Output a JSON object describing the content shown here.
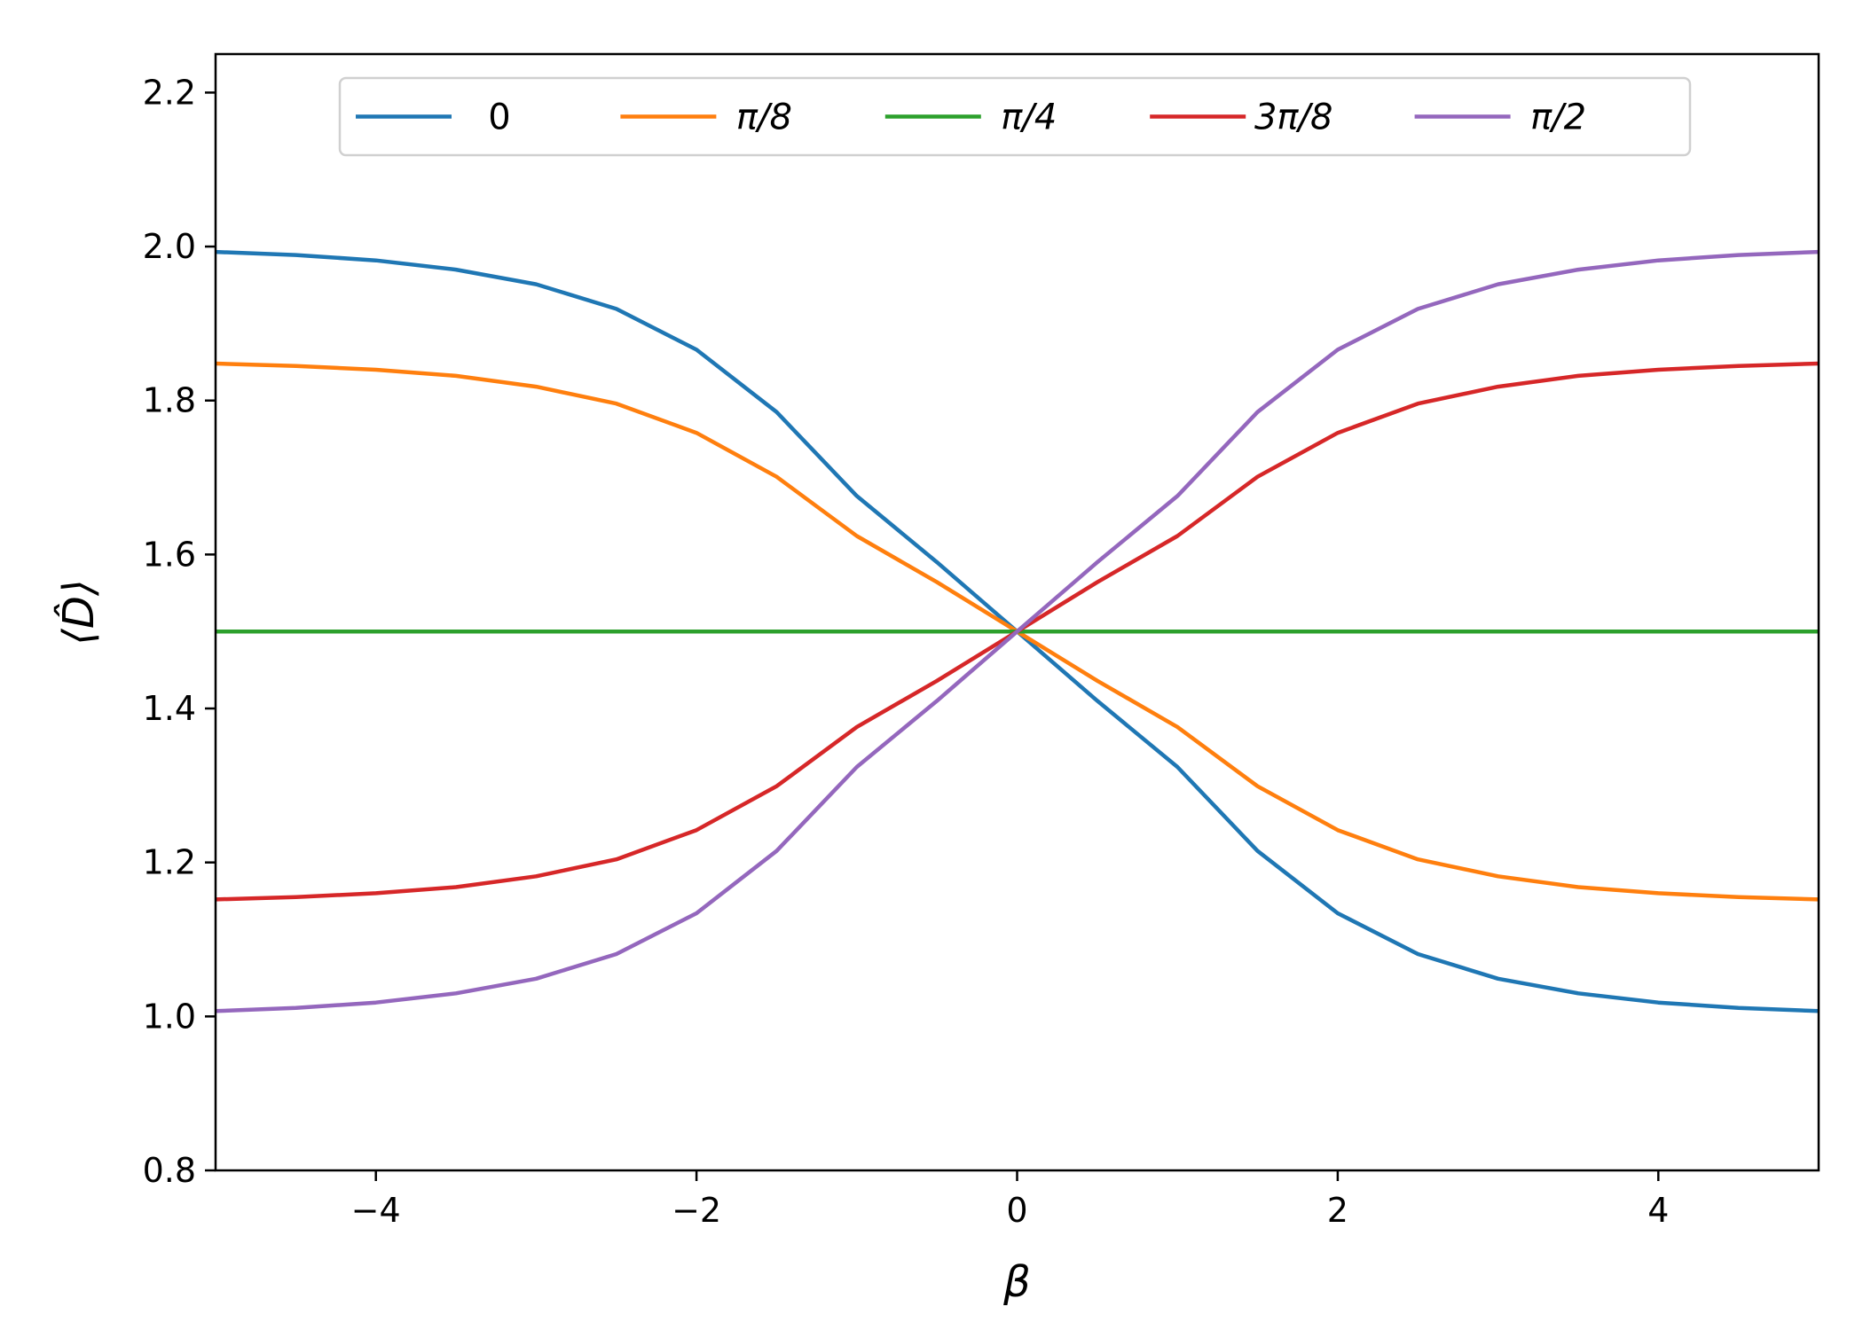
{
  "chart_data": {
    "type": "line",
    "title": "",
    "xlabel": "β",
    "ylabel": "⟨D̂⟩",
    "xlim": [
      -5,
      5
    ],
    "ylim": [
      0.8,
      2.25
    ],
    "x_ticks": [
      -4,
      -2,
      0,
      2,
      4
    ],
    "x_tick_labels": [
      "−4",
      "−2",
      "0",
      "2",
      "4"
    ],
    "y_ticks": [
      0.8,
      1.0,
      1.2,
      1.4,
      1.6,
      1.8,
      2.0,
      2.2
    ],
    "y_tick_labels": [
      "0.8",
      "1.0",
      "1.2",
      "1.4",
      "1.6",
      "1.8",
      "2.0",
      "2.2"
    ],
    "grid": false,
    "legend_position": "top-center",
    "x": [
      -5.0,
      -4.5,
      -4.0,
      -3.5,
      -3.0,
      -2.5,
      -2.0,
      -1.5,
      -1.0,
      -0.5,
      0.0,
      0.5,
      1.0,
      1.5,
      2.0,
      2.5,
      3.0,
      3.5,
      4.0,
      4.5,
      5.0
    ],
    "series": [
      {
        "name": "0",
        "color": "#1f77b4",
        "values": [
          1.993,
          1.989,
          1.982,
          1.97,
          1.951,
          1.919,
          1.866,
          1.785,
          1.676,
          1.59,
          1.5,
          1.41,
          1.324,
          1.215,
          1.134,
          1.081,
          1.049,
          1.03,
          1.018,
          1.011,
          1.007
        ]
      },
      {
        "name": "π/8",
        "color": "#ff7f0e",
        "values": [
          1.848,
          1.845,
          1.84,
          1.832,
          1.818,
          1.796,
          1.758,
          1.701,
          1.624,
          1.564,
          1.5,
          1.436,
          1.376,
          1.299,
          1.242,
          1.204,
          1.182,
          1.168,
          1.16,
          1.155,
          1.152
        ]
      },
      {
        "name": "π/4",
        "color": "#2ca02c",
        "values": [
          1.5,
          1.5,
          1.5,
          1.5,
          1.5,
          1.5,
          1.5,
          1.5,
          1.5,
          1.5,
          1.5,
          1.5,
          1.5,
          1.5,
          1.5,
          1.5,
          1.5,
          1.5,
          1.5,
          1.5,
          1.5
        ]
      },
      {
        "name": "3π/8",
        "color": "#d62728",
        "values": [
          1.152,
          1.155,
          1.16,
          1.168,
          1.182,
          1.204,
          1.242,
          1.299,
          1.376,
          1.436,
          1.5,
          1.564,
          1.624,
          1.701,
          1.758,
          1.796,
          1.818,
          1.832,
          1.84,
          1.845,
          1.848
        ]
      },
      {
        "name": "π/2",
        "color": "#9467bd",
        "values": [
          1.007,
          1.011,
          1.018,
          1.03,
          1.049,
          1.081,
          1.134,
          1.215,
          1.324,
          1.41,
          1.5,
          1.59,
          1.676,
          1.785,
          1.866,
          1.919,
          1.951,
          1.97,
          1.982,
          1.989,
          1.993
        ]
      }
    ]
  }
}
